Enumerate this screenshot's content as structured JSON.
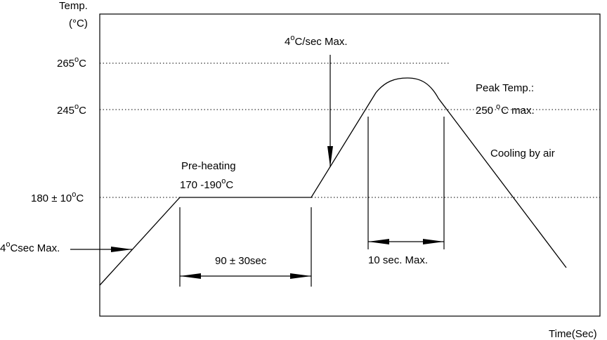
{
  "axes": {
    "y_title": "Temp.",
    "y_unit": "(°C)",
    "x_title": "Time(Sec)"
  },
  "y_ticks": [
    {
      "value": "265",
      "unit": "C"
    },
    {
      "value": "245",
      "unit": "C"
    },
    {
      "value": "180 ± 10",
      "unit": "C"
    }
  ],
  "annotations": {
    "ramp_up_start": {
      "value": "4",
      "text": "Csec Max."
    },
    "ramp_up_reflow": {
      "value": "4",
      "text": "C/sec Max."
    },
    "preheat_title": "Pre-heating",
    "preheat_range": {
      "value": "170 -190",
      "unit": "C"
    },
    "preheat_duration": "90 ± 30sec",
    "peak_title": "Peak Temp.:",
    "peak_value": {
      "value": "250",
      "text": "C max."
    },
    "cooling": "Cooling by air",
    "peak_duration": "10 sec. Max."
  },
  "colors": {
    "line": "#000000",
    "background": "#ffffff"
  }
}
